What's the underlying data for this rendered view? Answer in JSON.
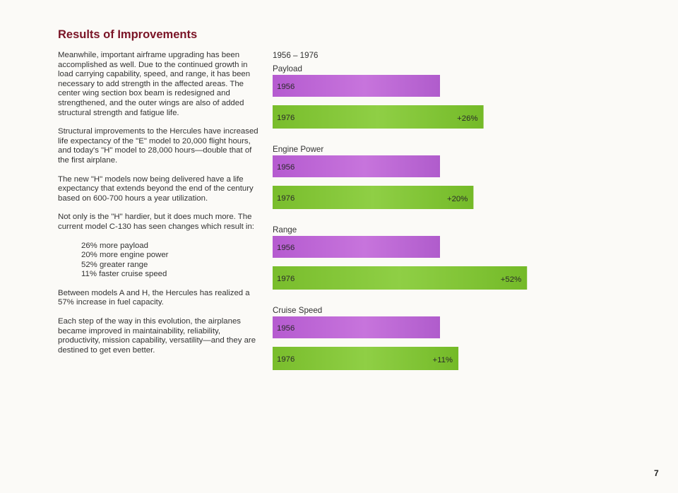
{
  "heading": "Results of Improvements",
  "paragraphs": [
    "Meanwhile, important airframe upgrading has been accomplished as well. Due to the continued growth in load carrying capability, speed, and range, it has been necessary to add strength in the affected areas. The center wing section box beam is redesigned and strengthened, and the outer wings are also of added structural strength and fatigue life.",
    "Structural improvements to the Hercules have increased life expectancy of the \"E\" model to 20,000 flight hours, and today's \"H\" model to 28,000 hours—double that of the first airplane.",
    "The new \"H\" models now being delivered have a life expectancy that extends beyond the end of the century based on 600-700 hours a year utilization.",
    "Not only is the \"H\" hardier, but it does much more. The current model C-130 has seen changes which result in:"
  ],
  "results_list": [
    "26% more payload",
    "20% more engine power",
    "52% greater range",
    "11% faster cruise speed"
  ],
  "closing_paragraphs": [
    "Between models A and H, the Hercules has realized a 57% increase in fuel capacity.",
    "Each step of the way in this evolution, the airplanes became improved in maintainability, reliability, productivity, mission capability, versatility—and they are destined to get even better."
  ],
  "page_number": "7",
  "colors": {
    "bar_1956": "#b65fd0",
    "bar_1976": "#7ec234",
    "heading": "#7a1426"
  },
  "chart_data": {
    "type": "bar",
    "orientation": "horizontal",
    "title": "1956 – 1976",
    "baseline_year": "1956",
    "compare_year": "1976",
    "categories": [
      {
        "name": "Payload",
        "value_1956": 100,
        "value_1976": 126,
        "change_label": "+26%"
      },
      {
        "name": "Engine Power",
        "value_1956": 100,
        "value_1976": 120,
        "change_label": "+20%"
      },
      {
        "name": "Range",
        "value_1956": 100,
        "value_1976": 152,
        "change_label": "+52%"
      },
      {
        "name": "Cruise Speed",
        "value_1956": 100,
        "value_1976": 111,
        "change_label": "+11%"
      }
    ],
    "xlim": [
      0,
      152
    ],
    "grid": false,
    "legend": "none"
  }
}
